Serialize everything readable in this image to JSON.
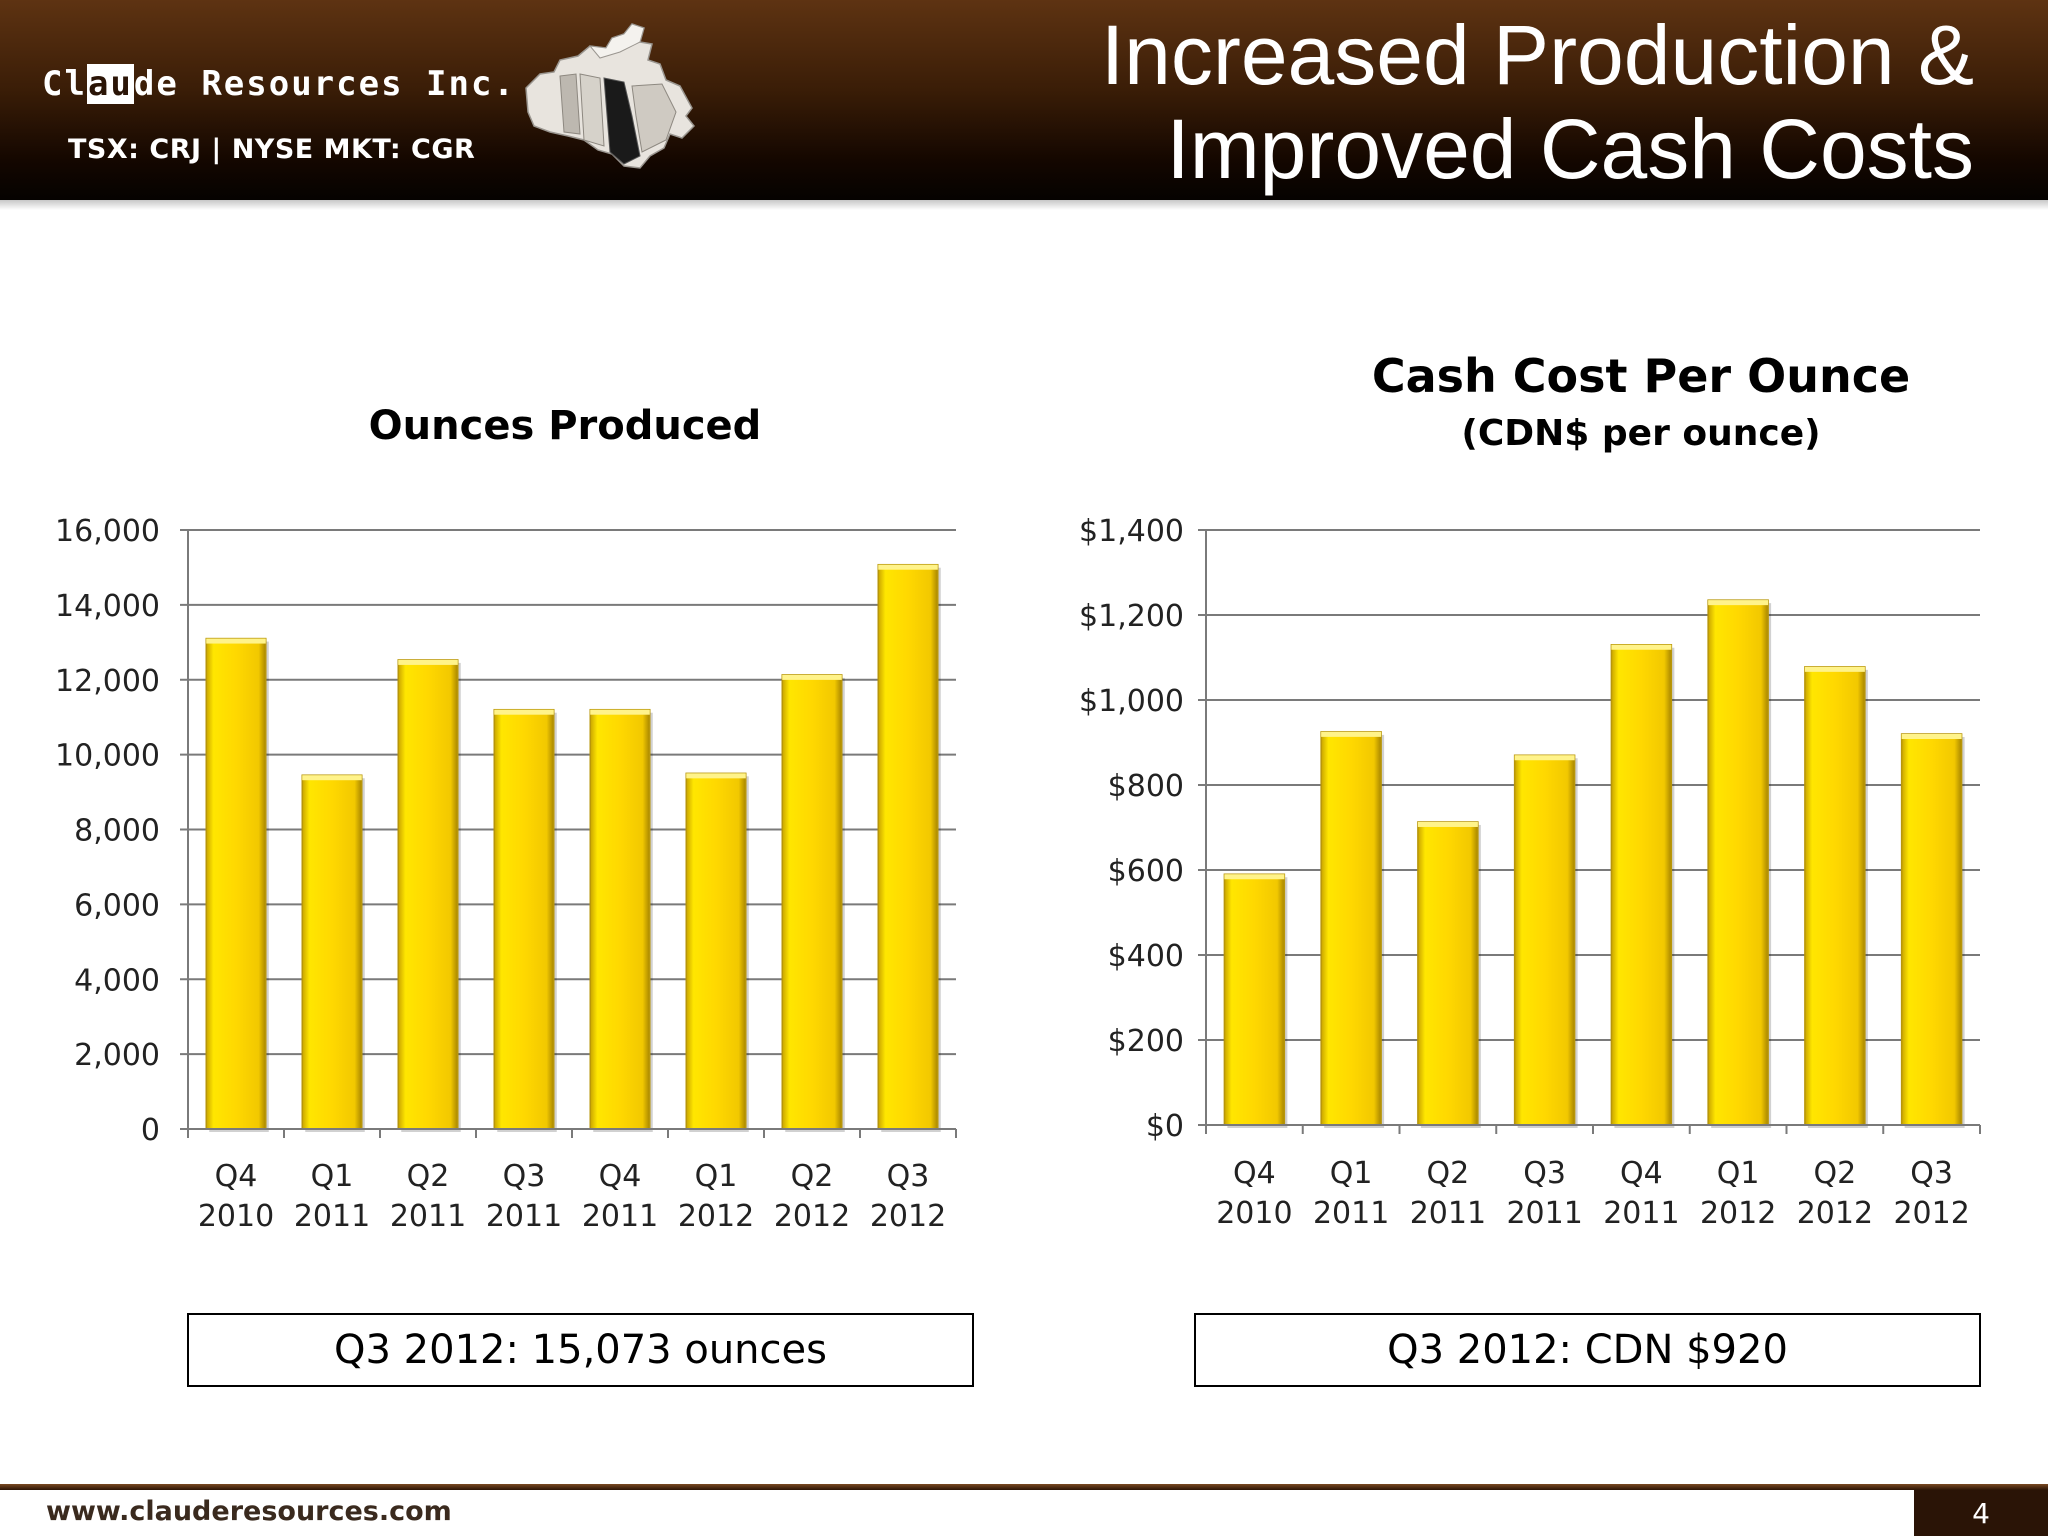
{
  "header": {
    "company_name": "Claude Resources Inc.",
    "company_pre": "Cl",
    "company_au": "au",
    "company_post": "de Resources Inc.",
    "ticker": "TSX: CRJ | NYSE MKT: CGR",
    "title_line1": "Increased Production &",
    "title_line2": "Improved Cash Costs"
  },
  "colors": {
    "header_dark": "#2a1406",
    "bar_fill": "#ffd800",
    "bar_edge": "#b8960a",
    "gridline": "#7a7a7a"
  },
  "chart_data": [
    {
      "type": "bar",
      "title": "Ounces Produced",
      "subtitle": "",
      "categories": [
        [
          "Q4",
          "2010"
        ],
        [
          "Q1",
          "2011"
        ],
        [
          "Q2",
          "2011"
        ],
        [
          "Q3",
          "2011"
        ],
        [
          "Q4",
          "2011"
        ],
        [
          "Q1",
          "2012"
        ],
        [
          "Q2",
          "2012"
        ],
        [
          "Q3",
          "2012"
        ]
      ],
      "values": [
        13100,
        9450,
        12530,
        11200,
        11200,
        9500,
        12130,
        15073
      ],
      "ylim": [
        0,
        16000
      ],
      "yticks": [
        0,
        2000,
        4000,
        6000,
        8000,
        10000,
        12000,
        14000,
        16000
      ],
      "ytick_labels": [
        "0",
        "2,000",
        "4,000",
        "6,000",
        "8,000",
        "10,000",
        "12,000",
        "14,000",
        "16,000"
      ],
      "grid": true,
      "legend": "none"
    },
    {
      "type": "bar",
      "title": "Cash Cost Per Ounce",
      "subtitle": "(CDN$ per ounce)",
      "categories": [
        [
          "Q4",
          "2010"
        ],
        [
          "Q1",
          "2011"
        ],
        [
          "Q2",
          "2011"
        ],
        [
          "Q3",
          "2011"
        ],
        [
          "Q4",
          "2011"
        ],
        [
          "Q1",
          "2012"
        ],
        [
          "Q2",
          "2012"
        ],
        [
          "Q3",
          "2012"
        ]
      ],
      "values": [
        590,
        925,
        713,
        870,
        1130,
        1235,
        1078,
        920
      ],
      "ylim": [
        0,
        1400
      ],
      "yticks": [
        0,
        200,
        400,
        600,
        800,
        1000,
        1200,
        1400
      ],
      "ytick_labels": [
        "$0",
        "$200",
        "$400",
        "$600",
        "$800",
        "$1,000",
        "$1,200",
        "$1,400"
      ],
      "grid": true,
      "legend": "none"
    }
  ],
  "callouts": {
    "production": "Q3 2012:  15,073  ounces",
    "cash_cost": "Q3 2012:  CDN $920"
  },
  "footer": {
    "url": "www.clauderesources.com",
    "page_number": "4"
  }
}
